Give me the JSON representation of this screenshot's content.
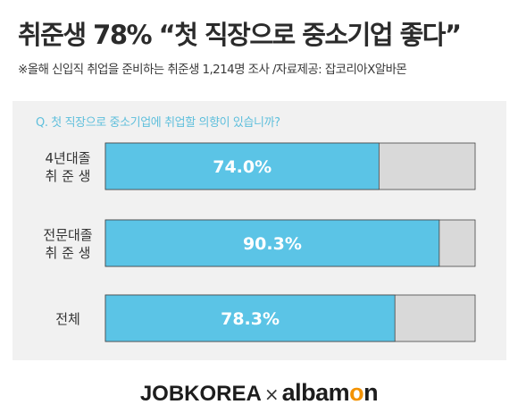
{
  "header": {
    "title": "취준생 78% “첫 직장으로 중소기업 좋다”",
    "subtitle": "※올해 신입직 취업을 준비하는 취준생 1,214명 조사 /자료제공: 잡코리아X알바몬"
  },
  "chart_data": {
    "type": "bar",
    "orientation": "horizontal",
    "stacked_to_100": true,
    "question": "Q. 첫 직장으로 중소기업에 취업할 의향이 있습니까?",
    "categories": [
      [
        "4년대졸",
        "취 준 생"
      ],
      [
        "전문대졸",
        "취 준 생"
      ],
      [
        "전체"
      ]
    ],
    "values": [
      74.0,
      90.3,
      78.3
    ],
    "value_labels": [
      "74.0%",
      "90.3%",
      "78.3%"
    ],
    "xlim": [
      0,
      100
    ],
    "colors": {
      "yes": "#5bc4e6",
      "rest": "#d9d9d9",
      "label": "#ffffff"
    }
  },
  "footer": {
    "jobkorea": "JOBKOREA",
    "x": "×",
    "albamon_prefix": "albam",
    "albamon_o": "o",
    "albamon_suffix": "n"
  }
}
